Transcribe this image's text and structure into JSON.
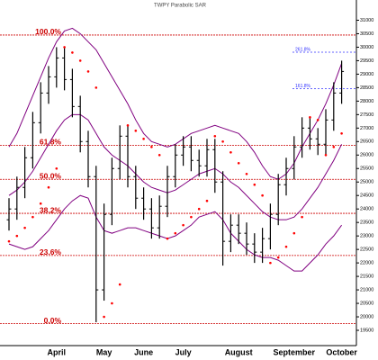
{
  "chart_data": {
    "type": "ohlc",
    "title": "TWPY Parabolic SAR",
    "categories": [
      null,
      null,
      null,
      null,
      null,
      null,
      "April",
      null,
      null,
      null,
      null,
      null,
      "May",
      null,
      null,
      null,
      null,
      "June",
      null,
      null,
      null,
      null,
      "July",
      null,
      null,
      null,
      null,
      null,
      null,
      "August",
      null,
      null,
      null,
      null,
      null,
      null,
      "September",
      null,
      null,
      null,
      null,
      null,
      "October"
    ],
    "open": [
      23600,
      24000,
      24800,
      25900,
      27200,
      28300,
      28900,
      29600,
      28800,
      27800,
      26500,
      25200,
      21000,
      23800,
      25500,
      26700,
      25200,
      24400,
      24000,
      23300,
      24100,
      25200,
      26000,
      26300,
      25800,
      25600,
      26200,
      25000,
      22800,
      23400,
      23100,
      22700,
      22400,
      22900,
      23800,
      24900,
      25500,
      26300,
      27000,
      26600,
      26400,
      27300,
      28300
    ],
    "high": [
      24400,
      25200,
      26300,
      27600,
      28700,
      29300,
      30000,
      30000,
      29200,
      28200,
      26900,
      25600,
      24200,
      25900,
      27100,
      27100,
      25600,
      24800,
      24400,
      24500,
      25600,
      26400,
      26700,
      26700,
      26200,
      26600,
      26600,
      25400,
      23800,
      23800,
      23500,
      23100,
      23300,
      24200,
      25300,
      25900,
      26700,
      27400,
      27400,
      27000,
      27700,
      28700,
      29500
    ],
    "low": [
      23200,
      23600,
      24400,
      25500,
      26800,
      27900,
      28500,
      28400,
      27400,
      26100,
      24800,
      19800,
      20600,
      23400,
      25100,
      24800,
      24000,
      23600,
      22900,
      22900,
      23700,
      24800,
      25600,
      25400,
      25200,
      25200,
      24600,
      21900,
      22400,
      22700,
      22300,
      22000,
      22000,
      22500,
      23400,
      24500,
      25100,
      25900,
      26200,
      26000,
      26000,
      26900,
      27900
    ],
    "close": [
      24000,
      24800,
      25900,
      27200,
      28300,
      28900,
      29600,
      28800,
      27800,
      26500,
      25200,
      21000,
      23800,
      25500,
      26700,
      25200,
      24400,
      24000,
      23300,
      24100,
      25200,
      26000,
      26300,
      25800,
      25600,
      26200,
      25000,
      22800,
      23400,
      23100,
      22700,
      22400,
      22900,
      23800,
      24900,
      25500,
      26300,
      27000,
      26600,
      26400,
      27300,
      28300,
      29100
    ],
    "bands": [
      {
        "color": "#800080",
        "values": [
          26300,
          26800,
          27500,
          28200,
          28900,
          29600,
          30200,
          30600,
          30700,
          30500,
          30200,
          29900,
          29400,
          28900,
          28400,
          27900,
          27300,
          26800,
          26500,
          26400,
          26300,
          26400,
          26600,
          26800,
          26900,
          27000,
          27100,
          27000,
          26900,
          26800,
          26500,
          26100,
          25600,
          25200,
          25100,
          25300,
          25700,
          26300,
          26800,
          27300,
          27900,
          28600,
          29400
        ]
      },
      {
        "color": "#800080",
        "values": [
          24500,
          24700,
          25000,
          25400,
          25900,
          26400,
          26900,
          27300,
          27500,
          27500,
          27300,
          26800,
          26300,
          26000,
          25800,
          25600,
          25300,
          25000,
          24800,
          24700,
          24600,
          24700,
          24900,
          25100,
          25300,
          25400,
          25500,
          25300,
          25000,
          24800,
          24500,
          24200,
          23900,
          23700,
          23600,
          23600,
          23700,
          24000,
          24400,
          24800,
          25300,
          25800,
          26400
        ]
      },
      {
        "color": "#800080",
        "values": [
          22700,
          22600,
          22500,
          22600,
          22900,
          23200,
          23600,
          24000,
          24300,
          24500,
          24400,
          23700,
          23200,
          23100,
          23200,
          23300,
          23300,
          23200,
          23100,
          23000,
          22900,
          23000,
          23200,
          23400,
          23700,
          23800,
          23900,
          23600,
          23100,
          22800,
          22500,
          22300,
          22200,
          22200,
          22100,
          21900,
          21700,
          21700,
          22000,
          22300,
          22700,
          23000,
          23400
        ]
      }
    ],
    "sar": {
      "color": "#ff0000",
      "values": [
        22800,
        23000,
        23300,
        23700,
        24200,
        24800,
        25500,
        30000,
        29800,
        29500,
        29100,
        28500,
        20000,
        20500,
        21200,
        27100,
        26900,
        26600,
        26300,
        26000,
        22900,
        23100,
        23400,
        23700,
        24000,
        24300,
        26700,
        26500,
        26100,
        25700,
        25300,
        24900,
        24500,
        22000,
        22200,
        22600,
        23100,
        23700,
        27400,
        27300,
        26000,
        26300,
        26800
      ]
    },
    "fib_levels": {
      "color": "#cc0000",
      "levels": [
        {
          "label": "100.0%",
          "value": 30450
        },
        {
          "label": "61.8%",
          "value": 26363
        },
        {
          "label": "50.0%",
          "value": 25100
        },
        {
          "label": "38.2%",
          "value": 23837
        },
        {
          "label": "23.6%",
          "value": 22275
        },
        {
          "label": "0.0%",
          "value": 19750
        }
      ]
    },
    "fib_extensions": {
      "color": "#3030ff",
      "levels": [
        {
          "label": "261.8%",
          "value": 29813
        },
        {
          "label": "161.8%",
          "value": 28457
        }
      ]
    },
    "ylim": [
      19000,
      31750
    ],
    "yticks": [
      19500,
      20000,
      20500,
      21000,
      21500,
      22000,
      22500,
      23000,
      23500,
      24000,
      24500,
      25000,
      25500,
      26000,
      26500,
      27000,
      27500,
      28000,
      28500,
      29000,
      29500,
      30000,
      30500,
      31000
    ]
  }
}
